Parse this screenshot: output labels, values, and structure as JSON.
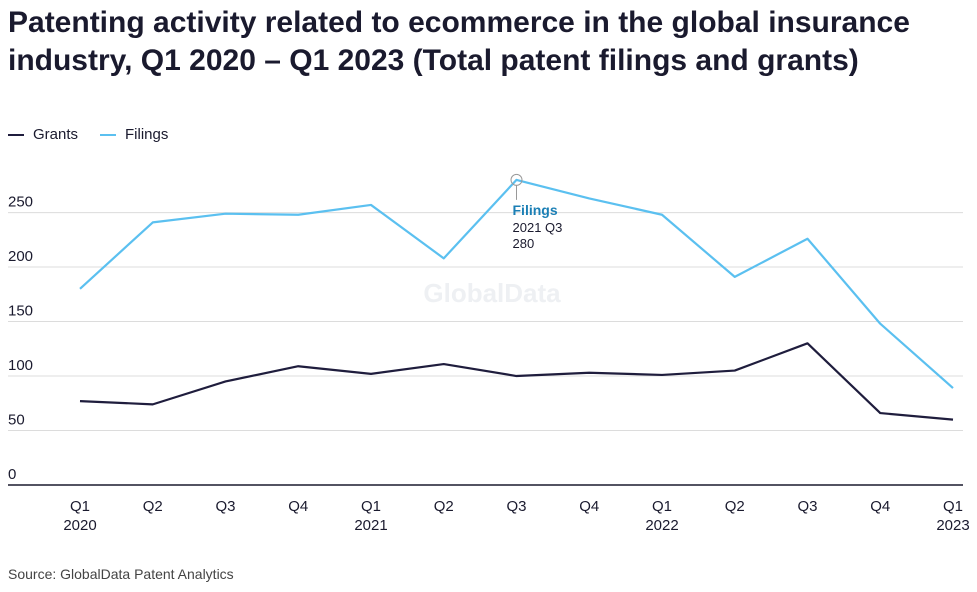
{
  "header": {
    "title": "Patenting activity related to ecommerce in the global insurance industry, Q1 2020 – Q1 2023 (Total patent filings and grants)"
  },
  "legend": {
    "items": [
      {
        "label": "Grants",
        "color": "#1f1d3d"
      },
      {
        "label": "Filings",
        "color": "#5bc0f0"
      }
    ]
  },
  "watermark": "GlobalData",
  "tooltip": {
    "series": "Filings",
    "period": "2021 Q3",
    "value": "280"
  },
  "footer": {
    "source": "Source: GlobalData Patent Analytics"
  },
  "chart_data": {
    "type": "line",
    "categories": [
      [
        "Q1",
        "2020"
      ],
      [
        "Q2",
        ""
      ],
      [
        "Q3",
        ""
      ],
      [
        "Q4",
        ""
      ],
      [
        "Q1",
        "2021"
      ],
      [
        "Q2",
        ""
      ],
      [
        "Q3",
        ""
      ],
      [
        "Q4",
        ""
      ],
      [
        "Q1",
        "2022"
      ],
      [
        "Q2",
        ""
      ],
      [
        "Q3",
        ""
      ],
      [
        "Q4",
        ""
      ],
      [
        "Q1",
        "2023"
      ]
    ],
    "series": [
      {
        "name": "Grants",
        "color": "#1f1d3d",
        "values": [
          77,
          74,
          95,
          109,
          102,
          111,
          100,
          103,
          101,
          105,
          130,
          66,
          60
        ]
      },
      {
        "name": "Filings",
        "color": "#5bc0f0",
        "values": [
          180,
          241,
          249,
          248,
          257,
          208,
          280,
          263,
          248,
          191,
          226,
          148,
          89
        ]
      }
    ],
    "yticks": [
      0,
      50,
      100,
      150,
      200,
      250
    ],
    "ylim": [
      0,
      290
    ],
    "grid": true,
    "legend": "top-left",
    "highlight": {
      "series": 1,
      "index": 6
    }
  }
}
